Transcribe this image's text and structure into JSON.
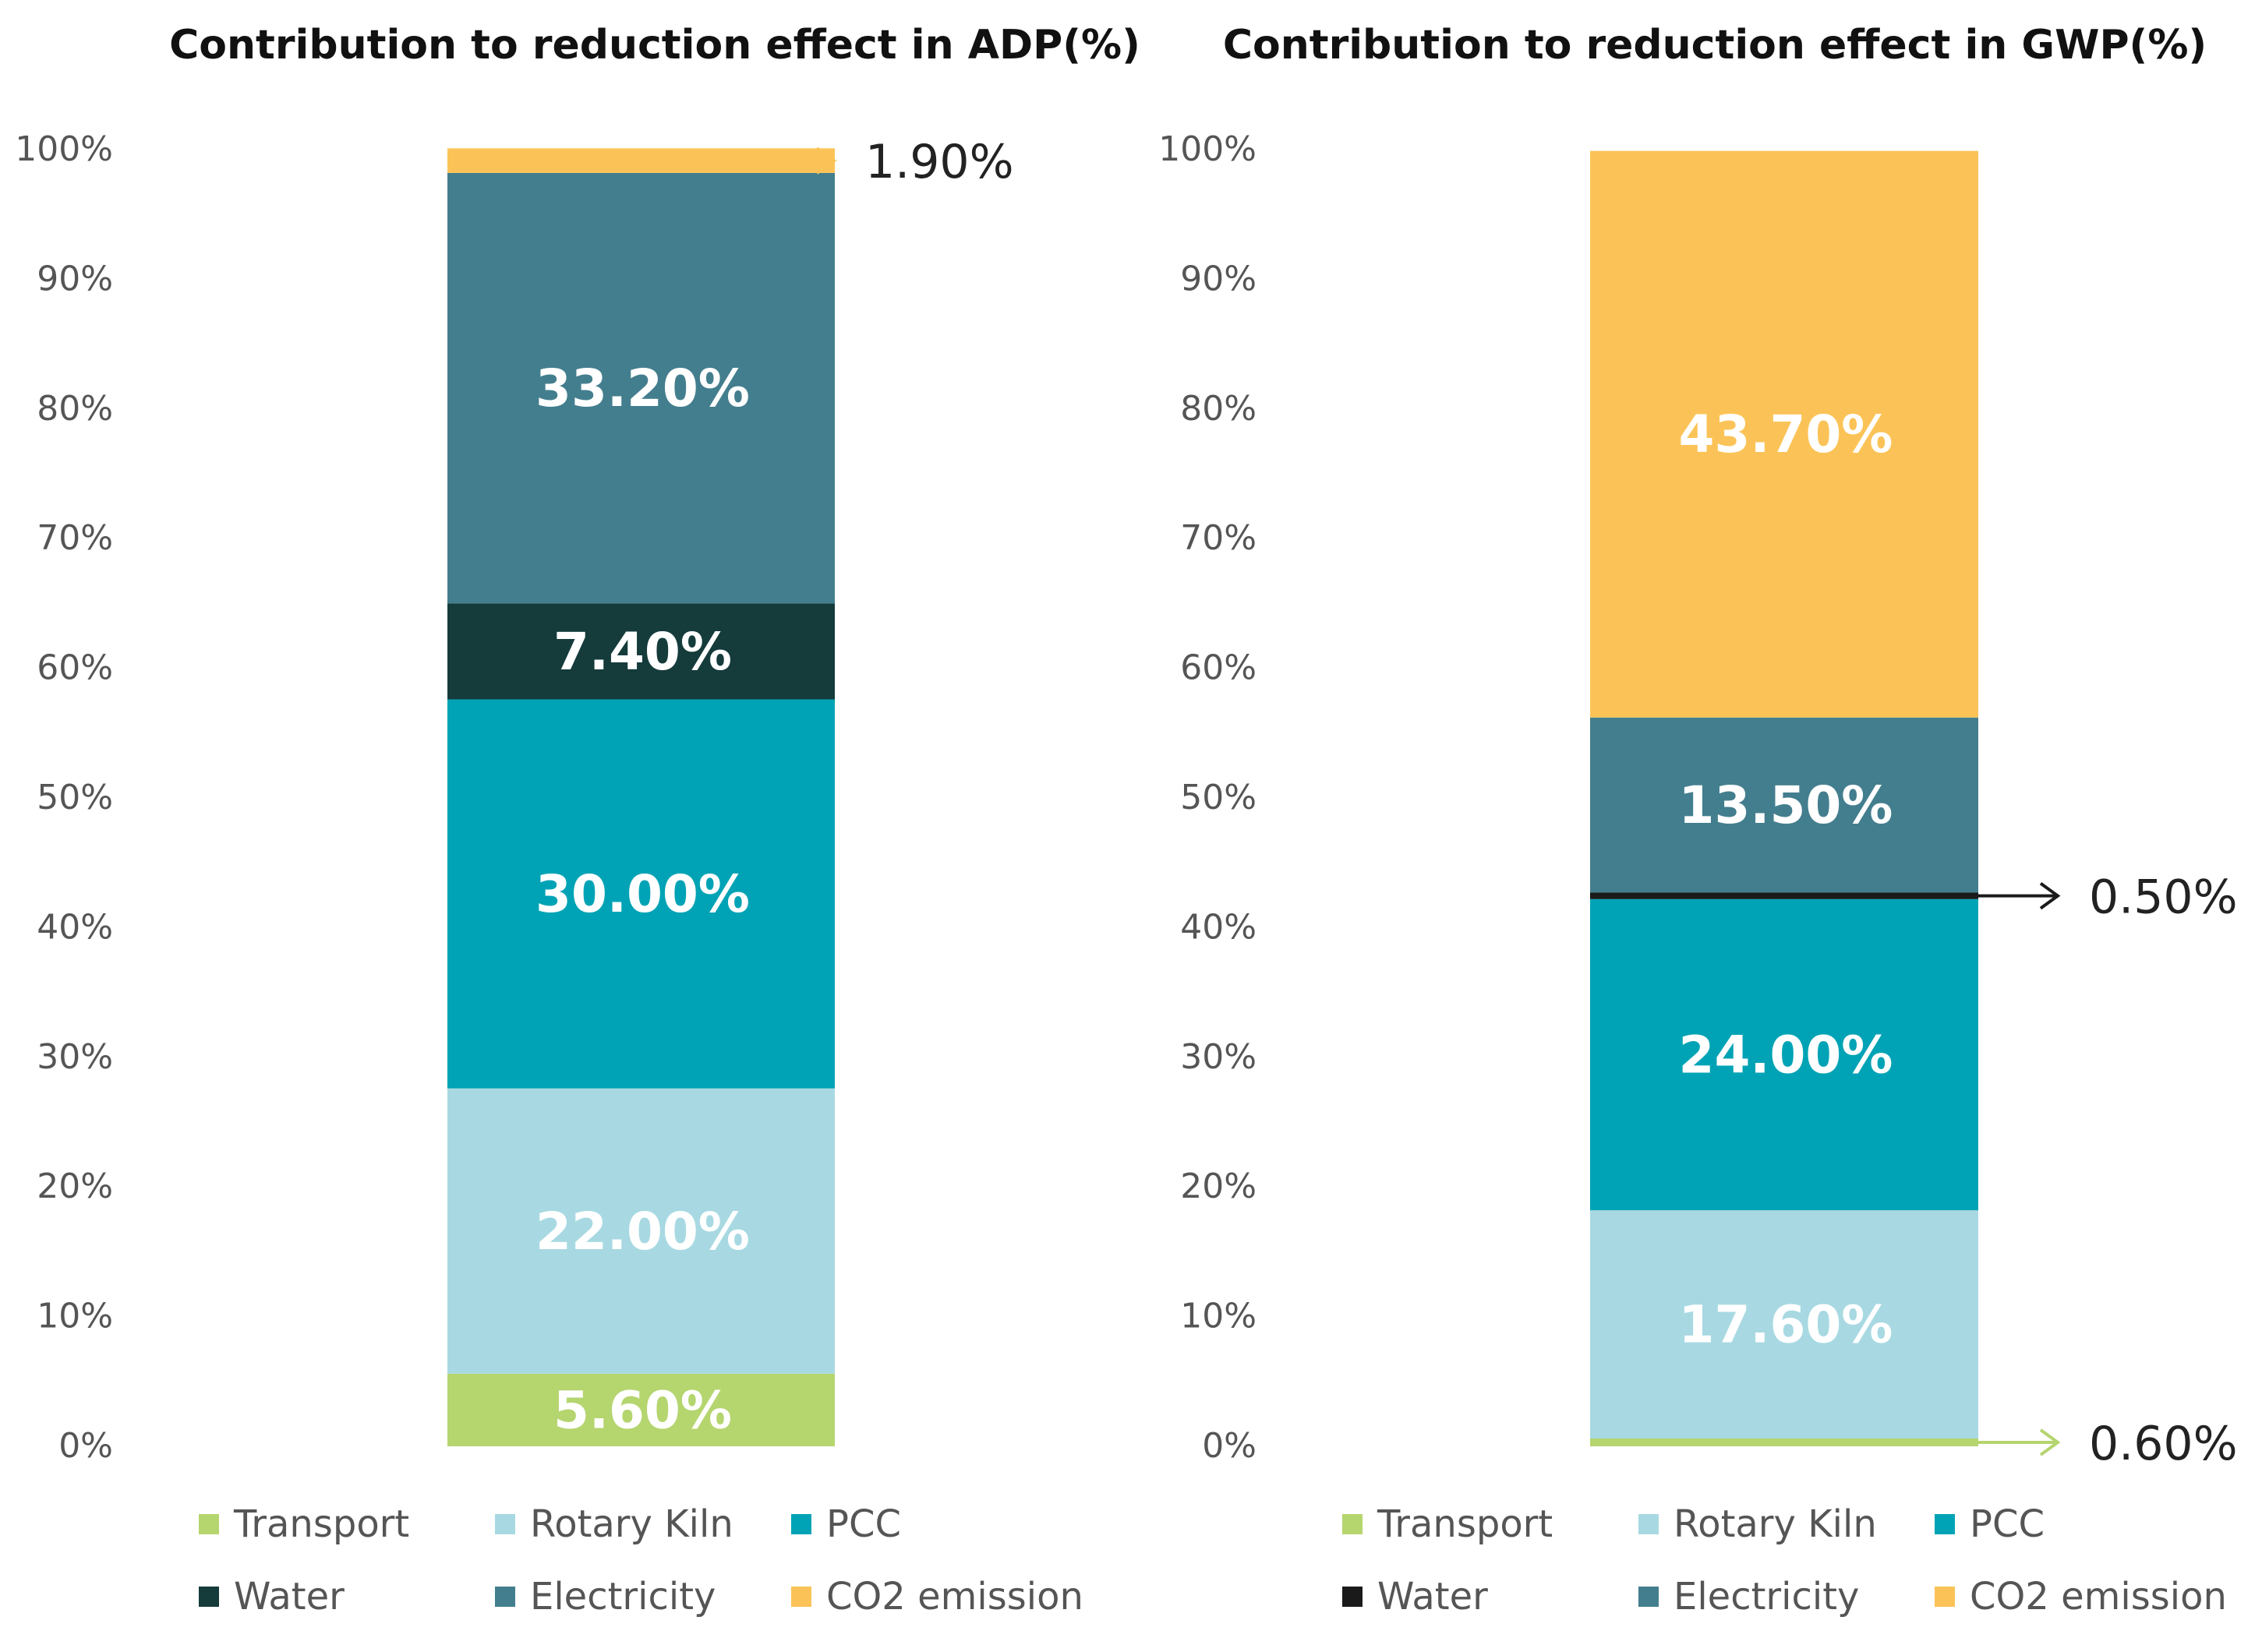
{
  "chart_data": [
    {
      "type": "bar",
      "stacked": true,
      "title": "Contribution to reduction effect in ADP(%)",
      "xlabel": "",
      "ylabel": "",
      "ylim": [
        0,
        100
      ],
      "yticks": [
        "0%",
        "10%",
        "20%",
        "30%",
        "40%",
        "50%",
        "60%",
        "70%",
        "80%",
        "90%",
        "100%"
      ],
      "grid": false,
      "legend_position": "bottom",
      "series": [
        {
          "name": "Transport",
          "value": 5.6,
          "label": "5.60%",
          "color": "#b5d56f"
        },
        {
          "name": "Rotary Kiln",
          "value": 22.0,
          "label": "22.00%",
          "color": "#a8d9e2"
        },
        {
          "name": "PCC",
          "value": 30.0,
          "label": "30.00%",
          "color": "#00a3b5"
        },
        {
          "name": "Water",
          "value": 7.4,
          "label": "7.40%",
          "color": "#153b3b"
        },
        {
          "name": "Electricity",
          "value": 33.2,
          "label": "33.20%",
          "color": "#437e8e"
        },
        {
          "name": "CO2 emission",
          "value": 1.9,
          "label": "1.90%",
          "color": "#fbc357"
        }
      ]
    },
    {
      "type": "bar",
      "stacked": true,
      "title": "Contribution to reduction effect in GWP(%)",
      "xlabel": "",
      "ylabel": "",
      "ylim": [
        0,
        100
      ],
      "yticks": [
        "0%",
        "10%",
        "20%",
        "30%",
        "40%",
        "50%",
        "60%",
        "70%",
        "80%",
        "90%",
        "100%"
      ],
      "grid": false,
      "legend_position": "bottom",
      "series": [
        {
          "name": "Transport",
          "value": 0.6,
          "label": "0.60%",
          "color": "#b5d56f"
        },
        {
          "name": "Rotary Kiln",
          "value": 17.6,
          "label": "17.60%",
          "color": "#a8d9e2"
        },
        {
          "name": "PCC",
          "value": 24.0,
          "label": "24.00%",
          "color": "#00a3b5"
        },
        {
          "name": "Water",
          "value": 0.5,
          "label": "0.50%",
          "color": "#1a1a1a"
        },
        {
          "name": "Electricity",
          "value": 13.5,
          "label": "13.50%",
          "color": "#437e8e"
        },
        {
          "name": "CO2 emission",
          "value": 43.7,
          "label": "43.70%",
          "color": "#fbc357"
        }
      ]
    }
  ]
}
